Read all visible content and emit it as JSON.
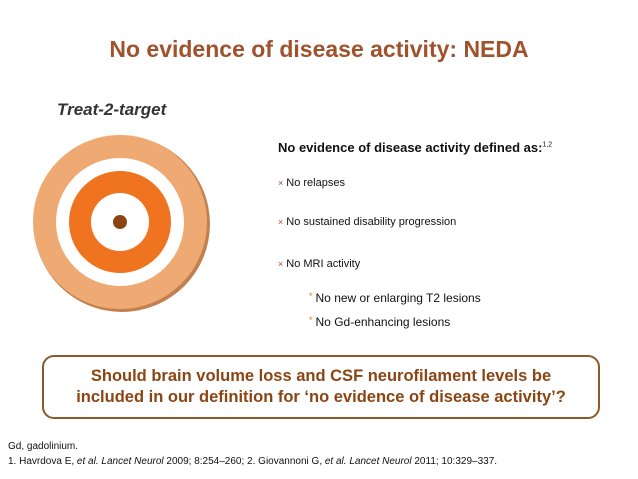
{
  "title": "No evidence of disease activity: NEDA",
  "subtitle": "Treat-2-target",
  "target": {
    "icon": "bullseye-target",
    "colors": {
      "outer": "#eeaa72",
      "outer_shadow": "#c08050",
      "white": "#ffffff",
      "middle": "#f07420",
      "center": "#8b4513"
    }
  },
  "definition": {
    "title": "No evidence of disease activity defined as:",
    "sup": "1,2",
    "items": [
      "No relapses",
      "No sustained disability progression",
      "No MRI activity"
    ],
    "sub_items": [
      "No new or enlarging T2 lesions",
      "No Gd-enhancing lesions"
    ],
    "bullet_mark": "×",
    "sub_bullet_mark": "*"
  },
  "question": {
    "line1": "Should brain volume loss and CSF neurofilament levels be",
    "line2": "included in our definition for ‘no evidence of disease activity’?"
  },
  "footnotes": {
    "abbrev": "Gd, gadolinium.",
    "ref_parts": [
      {
        "text": "1. Havrdova E, ",
        "italic": false
      },
      {
        "text": "et al. Lancet Neurol",
        "italic": true
      },
      {
        "text": " 2009; 8:254–260; 2. Giovannoni G, ",
        "italic": false
      },
      {
        "text": "et al. Lancet Neurol",
        "italic": true
      },
      {
        "text": " 2011; 10:329–337.",
        "italic": false
      }
    ]
  },
  "colors": {
    "title": "#a0522d",
    "accent": "#e87722",
    "box_border": "#8b5a2b"
  }
}
